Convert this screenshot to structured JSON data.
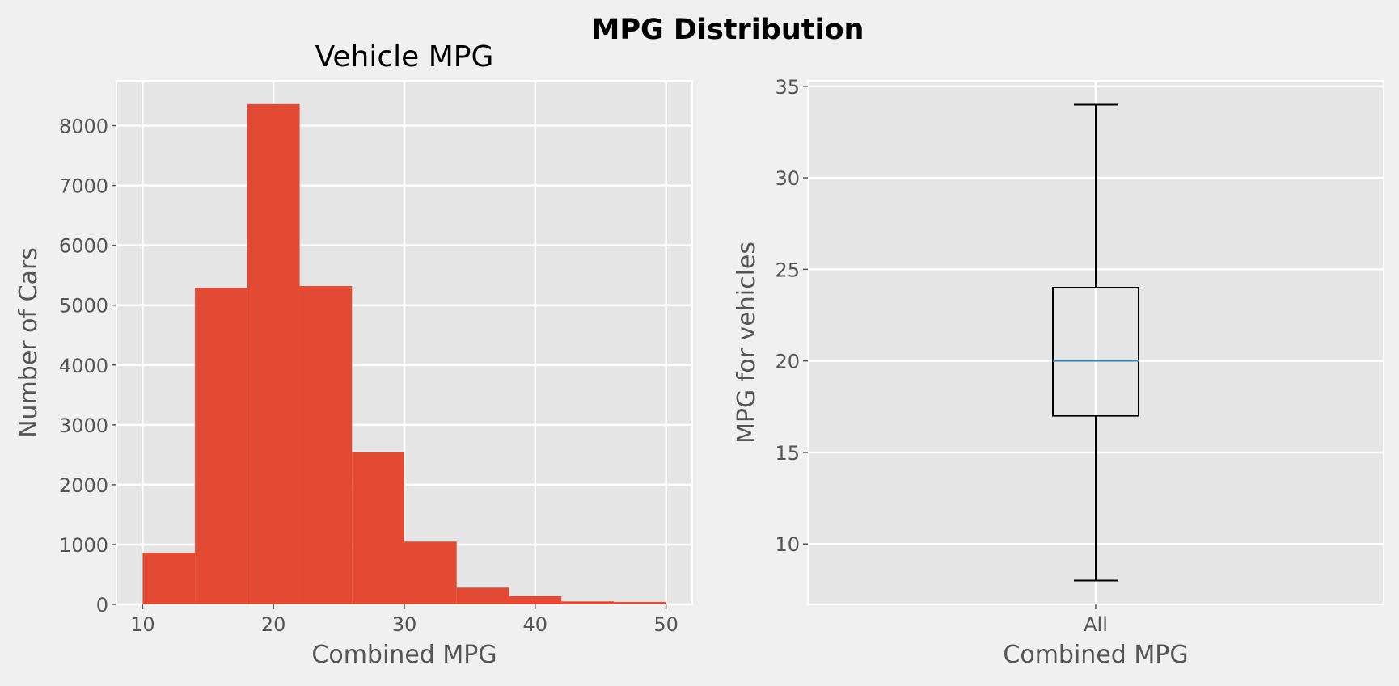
{
  "figure": {
    "suptitle": "MPG Distribution"
  },
  "chart_data": [
    {
      "type": "histogram",
      "title": "Vehicle MPG",
      "xlabel": "Combined MPG",
      "ylabel": "Number of Cars",
      "bins": [
        10,
        14,
        18,
        22,
        26,
        30,
        34,
        38,
        42,
        46,
        50
      ],
      "values": [
        860,
        5290,
        8360,
        5320,
        2540,
        1050,
        280,
        140,
        50,
        40
      ],
      "xlim": [
        8,
        52
      ],
      "ylim": [
        0,
        8750
      ],
      "xticks": [
        10,
        20,
        30,
        40,
        50
      ],
      "yticks": [
        0,
        1000,
        2000,
        3000,
        4000,
        5000,
        6000,
        7000,
        8000
      ],
      "grid": true,
      "colors": {
        "bar": "#e24a33",
        "background": "#e5e5e5",
        "grid": "#ffffff"
      }
    },
    {
      "type": "box",
      "xlabel": "Combined MPG",
      "ylabel": "MPG for vehicles",
      "categories": [
        "All"
      ],
      "stats": {
        "whisker_low": 8,
        "q1": 17,
        "median": 20,
        "q3": 24,
        "whisker_high": 34
      },
      "ylim": [
        6.7,
        35.3
      ],
      "yticks": [
        10,
        15,
        20,
        25,
        30,
        35
      ],
      "grid": true,
      "colors": {
        "box": "#000000",
        "median": "#348abd",
        "background": "#e5e5e5",
        "grid": "#ffffff"
      }
    }
  ]
}
